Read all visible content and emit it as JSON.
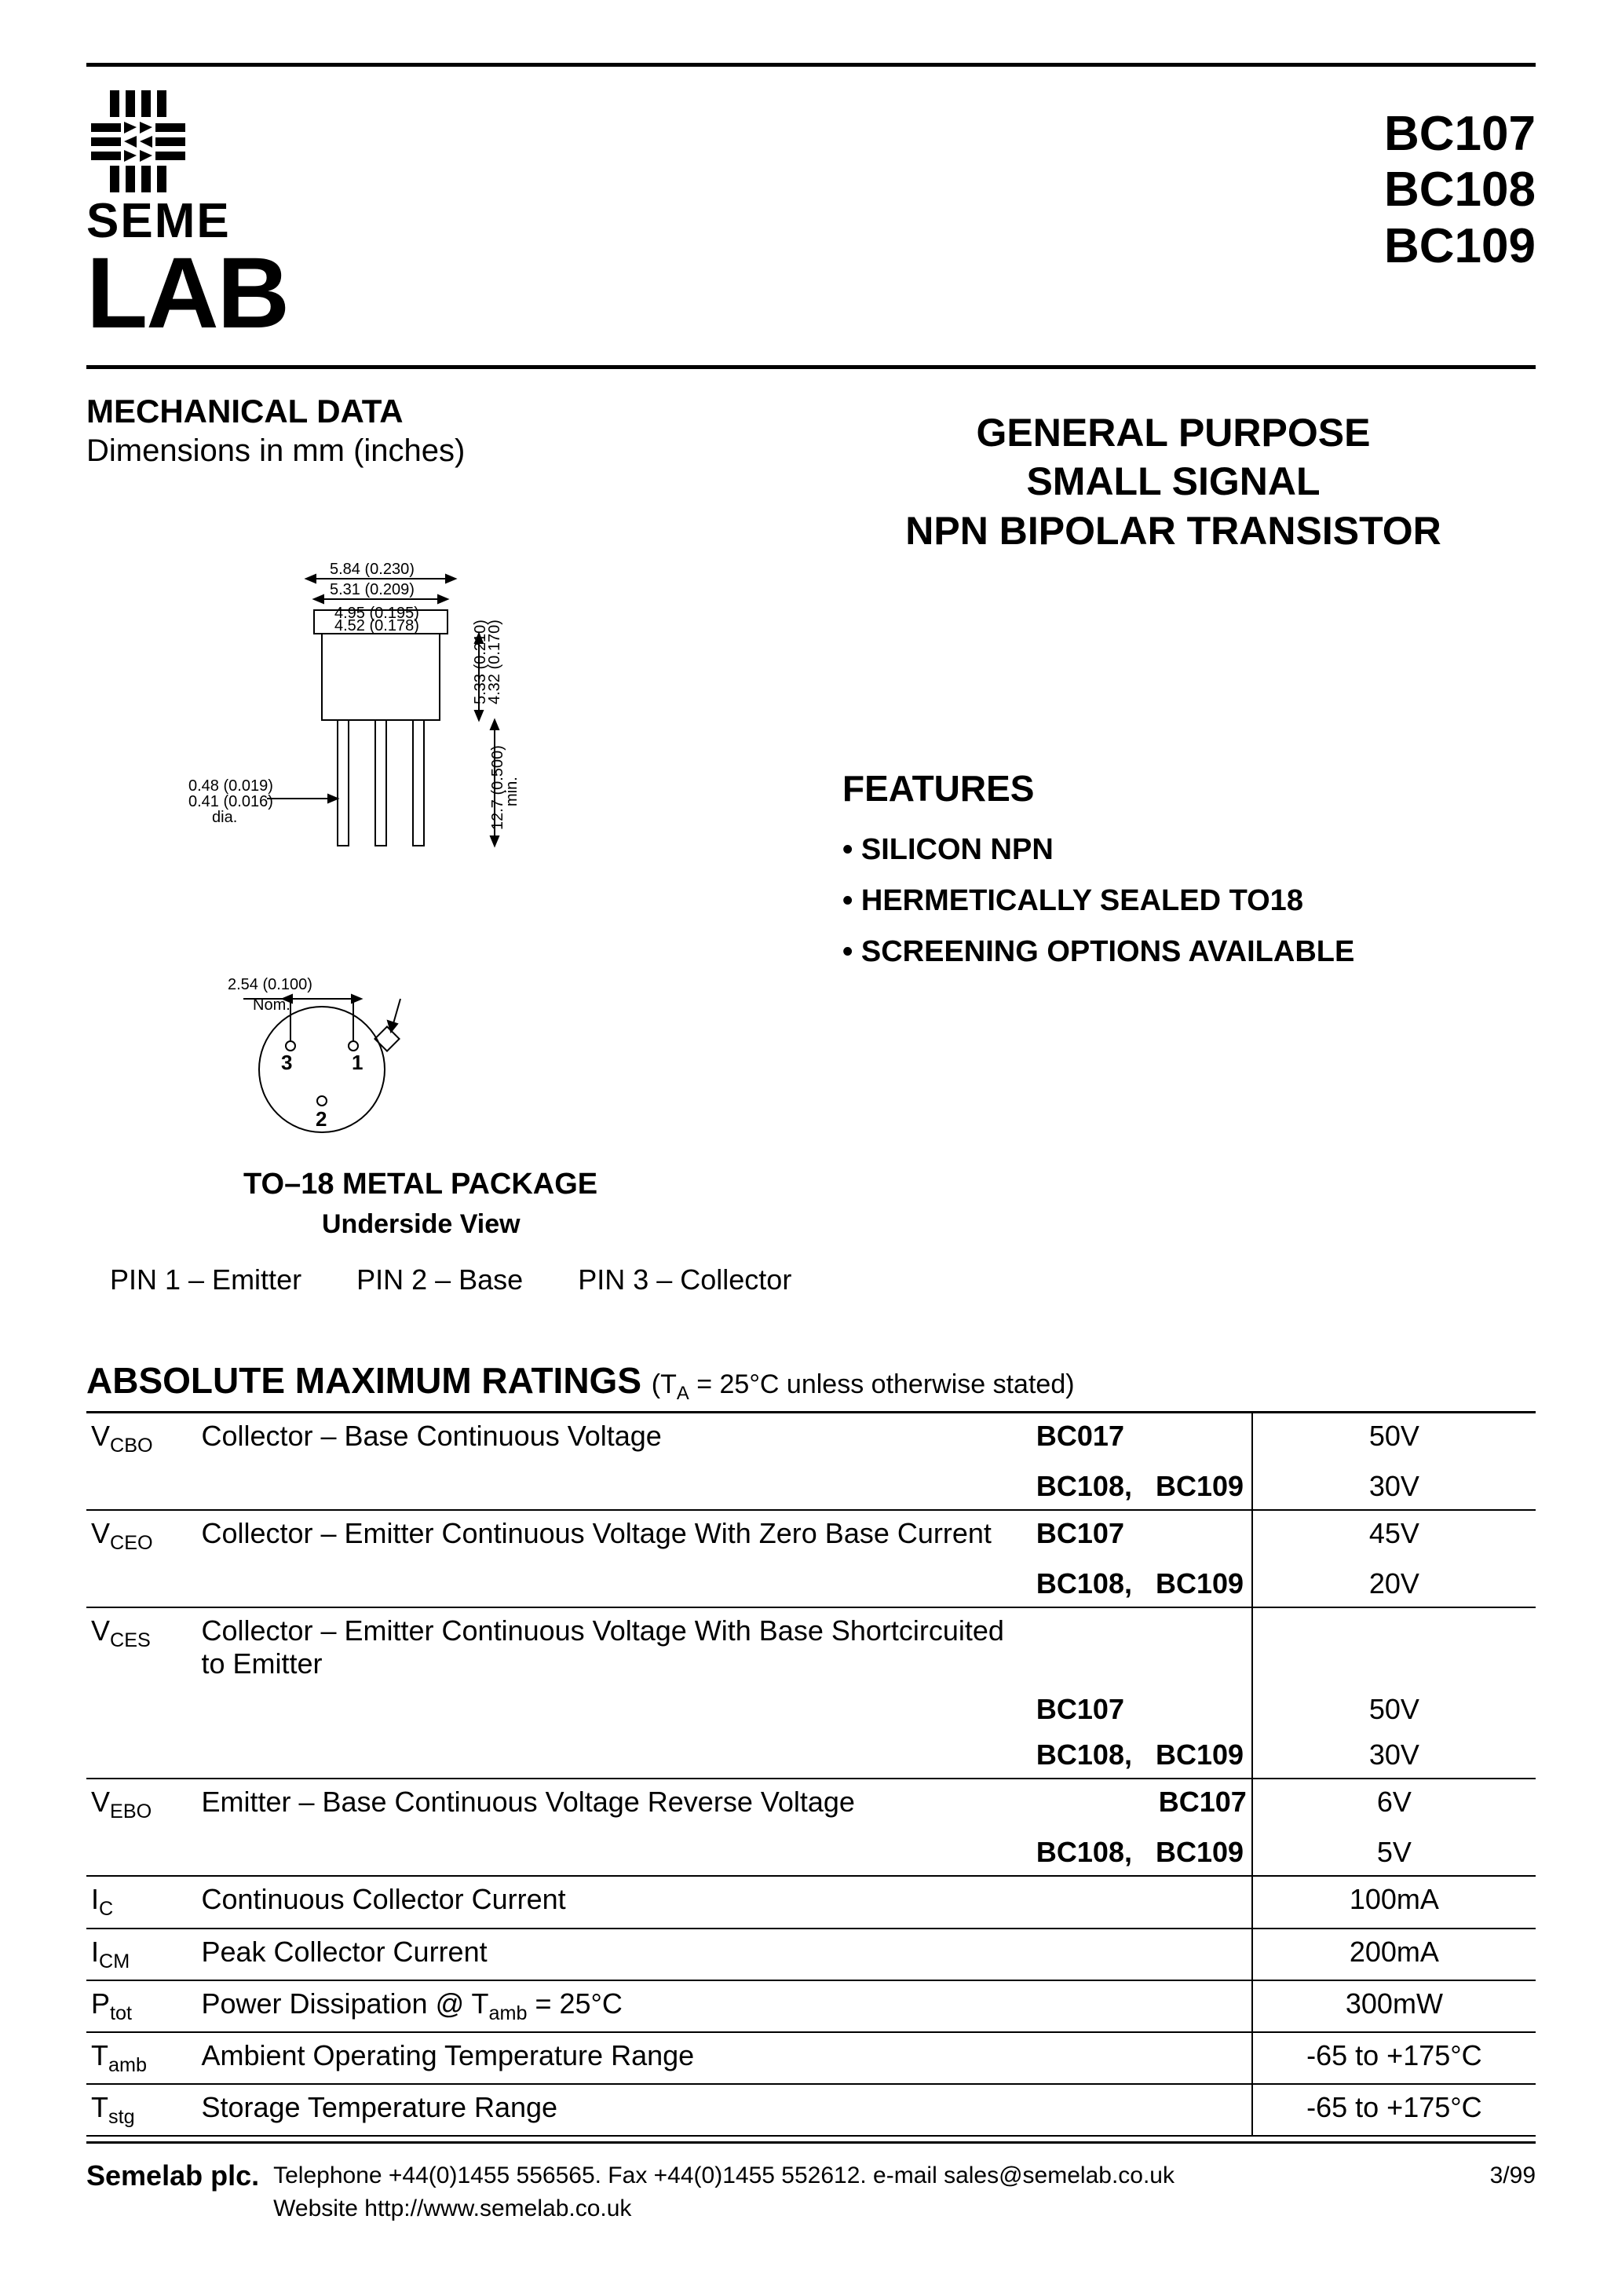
{
  "logo": {
    "line1": "SEME",
    "line2": "LAB"
  },
  "part_numbers": [
    "BC107",
    "BC108",
    "BC109"
  ],
  "mechanical": {
    "heading": "MECHANICAL DATA",
    "subheading": "Dimensions in mm (inches)",
    "package_label": "TO–18 METAL PACKAGE",
    "view_label": "Underside View",
    "pins": [
      "PIN 1 – Emitter",
      "PIN 2 – Base",
      "PIN 3 – Collector"
    ],
    "dims": {
      "top_outer": "5.84 (0.230)",
      "top_inner": "5.31 (0.209)",
      "body_outer": "4.95 (0.195)",
      "body_inner": "4.52 (0.178)",
      "height_outer": "5.33 (0.210)",
      "height_inner": "4.32 (0.170)",
      "lead_len": "12.7 (0.500)",
      "lead_note": "min.",
      "lead_dia1": "0.48 (0.019)",
      "lead_dia2": "0.41 (0.016)",
      "lead_dia_note": "dia.",
      "pitch": "2.54 (0.100)",
      "pitch_note": "Nom."
    }
  },
  "title": {
    "line1": "GENERAL PURPOSE",
    "line2": "SMALL SIGNAL",
    "line3": "NPN BIPOLAR TRANSISTOR"
  },
  "features": {
    "heading": "FEATURES",
    "items": [
      "SILICON NPN",
      "HERMETICALLY SEALED TO18",
      "SCREENING OPTIONS AVAILABLE"
    ]
  },
  "ratings": {
    "heading": "ABSOLUTE MAXIMUM RATINGS",
    "condition": "(T",
    "condition_sub": "A",
    "condition_rest": " = 25°C unless otherwise stated)",
    "rows": [
      {
        "sym": "V",
        "sub": "CBO",
        "desc": "Collector – Base Continuous Voltage",
        "lines": [
          {
            "parts": "BC017",
            "val": "50V"
          },
          {
            "parts": "BC108,   BC109",
            "val": "30V"
          }
        ]
      },
      {
        "sym": "V",
        "sub": "CEO",
        "desc": "Collector – Emitter Continuous Voltage With Zero Base Current",
        "lines": [
          {
            "parts": "BC107",
            "val": "45V"
          },
          {
            "parts": "BC108,   BC109",
            "val": "20V"
          }
        ]
      },
      {
        "sym": "V",
        "sub": "CES",
        "desc": "Collector – Emitter Continuous Voltage With Base Shortcircuited to Emitter",
        "lines": [
          {
            "parts": "",
            "val": ""
          },
          {
            "parts": "BC107",
            "val": "50V"
          },
          {
            "parts": "BC108,   BC109",
            "val": "30V"
          }
        ]
      },
      {
        "sym": "V",
        "sub": "EBO",
        "desc": "Emitter – Base Continuous Voltage Reverse Voltage",
        "lines": [
          {
            "parts": "BC107",
            "val": "6V",
            "part_align": "right"
          },
          {
            "parts": "BC108,   BC109",
            "val": "5V"
          }
        ]
      },
      {
        "sym": "I",
        "sub": "C",
        "desc": "Continuous Collector Current",
        "lines": [
          {
            "parts": "",
            "val": "100mA"
          }
        ]
      },
      {
        "sym": "I",
        "sub": "CM",
        "desc": "Peak Collector Current",
        "lines": [
          {
            "parts": "",
            "val": "200mA"
          }
        ]
      },
      {
        "sym": "P",
        "sub": "tot",
        "desc": "Power Dissipation @ T",
        "desc_sub": "amb",
        "desc_rest": " = 25°C",
        "lines": [
          {
            "parts": "",
            "val": "300mW"
          }
        ]
      },
      {
        "sym": "T",
        "sub": "amb",
        "desc": "Ambient Operating Temperature Range",
        "lines": [
          {
            "parts": "",
            "val": "-65 to +175°C"
          }
        ]
      },
      {
        "sym": "T",
        "sub": "stg",
        "desc": "Storage Temperature Range",
        "lines": [
          {
            "parts": "",
            "val": "-65 to +175°C"
          }
        ]
      }
    ]
  },
  "footer": {
    "company": "Semelab plc.",
    "contact": "Telephone +44(0)1455 556565. Fax +44(0)1455 552612. e-mail sales@semelab.co.uk",
    "website": "Website http://www.semelab.co.uk",
    "date": "3/99"
  },
  "colors": {
    "text": "#000000",
    "bg": "#ffffff",
    "rule": "#000000"
  }
}
